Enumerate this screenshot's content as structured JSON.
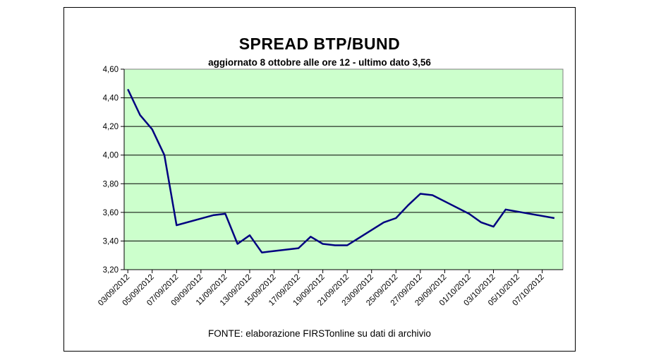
{
  "chart_data": {
    "type": "line",
    "title": "SPREAD  BTP/BUND",
    "subtitle": "aggiornato 8 ottobre alle  ore 12 - ultimo  dato 3,56",
    "source": "FONTE: elaborazione FIRSTonline su dati di archivio",
    "x_tick_labels": [
      "03/09/2012",
      "05/09/2012",
      "07/09/2012",
      "09/09/2012",
      "11/09/2012",
      "13/09/2012",
      "15/09/2012",
      "17/09/2012",
      "19/09/2012",
      "21/09/2012",
      "23/09/2012",
      "25/09/2012",
      "27/09/2012",
      "29/09/2012",
      "01/10/2012",
      "03/10/2012",
      "05/10/2012",
      "07/10/2012"
    ],
    "y_tick_labels": [
      "3,20",
      "3,40",
      "3,60",
      "3,80",
      "4,00",
      "4,20",
      "4,40",
      "4,60"
    ],
    "ylim": [
      3.2,
      4.6
    ],
    "grid": true,
    "line_color": "#000080",
    "plot_background": "#ccffcc",
    "series": [
      {
        "x": [
          "03/09/2012",
          "04/09/2012",
          "05/09/2012",
          "06/09/2012",
          "07/09/2012",
          "10/09/2012",
          "11/09/2012",
          "12/09/2012",
          "13/09/2012",
          "14/09/2012",
          "15/09/2012",
          "17/09/2012",
          "18/09/2012",
          "19/09/2012",
          "20/09/2012",
          "21/09/2012",
          "24/09/2012",
          "25/09/2012",
          "26/09/2012",
          "27/09/2012",
          "28/09/2012",
          "01/10/2012",
          "02/10/2012",
          "03/10/2012",
          "04/10/2012",
          "08/10/2012"
        ],
        "values": [
          4.46,
          4.28,
          4.18,
          4.0,
          3.51,
          3.58,
          3.59,
          3.38,
          3.44,
          3.32,
          3.33,
          3.35,
          3.43,
          3.38,
          3.37,
          3.37,
          3.53,
          3.56,
          3.65,
          3.73,
          3.72,
          3.59,
          3.53,
          3.5,
          3.62,
          3.56
        ]
      }
    ]
  }
}
